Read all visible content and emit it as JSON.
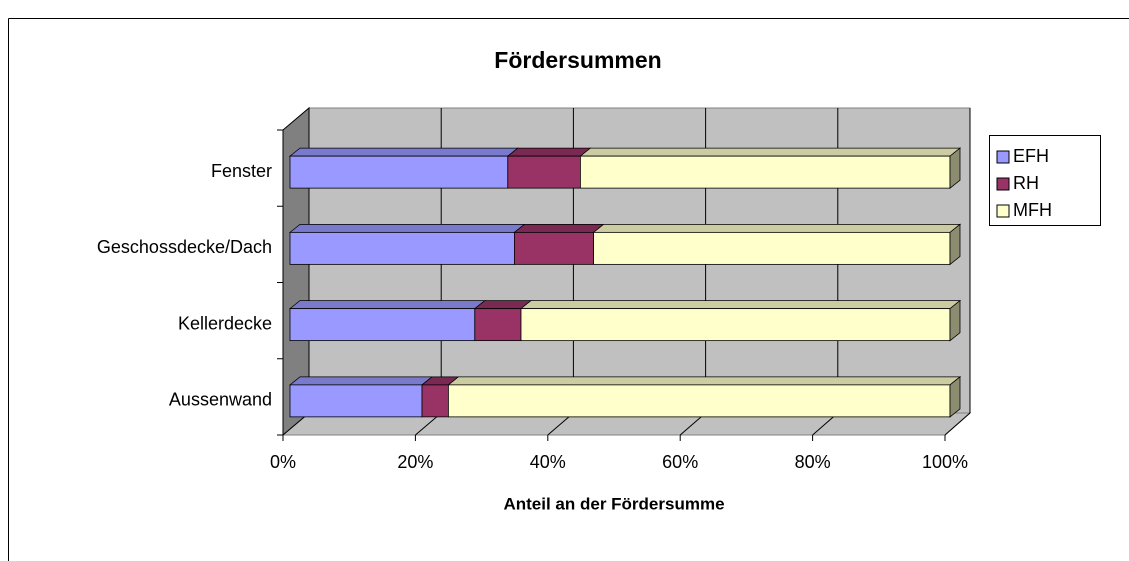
{
  "chart_data": {
    "type": "bar",
    "orientation": "horizontal",
    "stacked": true,
    "title": "Fördersummen",
    "x_label": "Anteil an der Fördersumme",
    "categories": [
      "Fenster",
      "Geschossdecke/Dach",
      "Kellerdecke",
      "Aussenwand"
    ],
    "series": [
      {
        "name": "EFH",
        "color": "#9999ff",
        "values": [
          33,
          34,
          28,
          20
        ]
      },
      {
        "name": "RH",
        "color": "#993366",
        "values": [
          11,
          12,
          7,
          4
        ]
      },
      {
        "name": "MFH",
        "color": "#ffffcc",
        "values": [
          56,
          54,
          65,
          76
        ]
      }
    ],
    "xlim": [
      0,
      100
    ],
    "xticks": [
      {
        "value": 0,
        "label": "0%"
      },
      {
        "value": 20,
        "label": "20%"
      },
      {
        "value": 40,
        "label": "40%"
      },
      {
        "value": 60,
        "label": "60%"
      },
      {
        "value": 80,
        "label": "80%"
      },
      {
        "value": 100,
        "label": "100%"
      }
    ],
    "grid": true,
    "legend": "right"
  }
}
